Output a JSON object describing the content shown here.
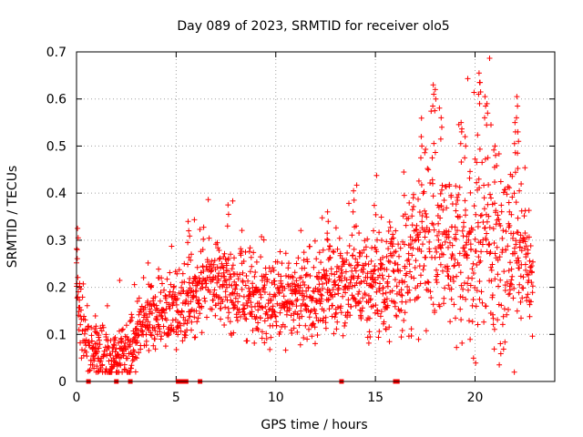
{
  "chart_data": {
    "type": "scatter",
    "title": "Day 089 of 2023, SRMTID for receiver olo5",
    "xlabel": "GPS time / hours",
    "ylabel": "SRMTID / TECUs",
    "xlim": [
      0,
      24
    ],
    "ylim": [
      0,
      0.7
    ],
    "xticks": [
      0,
      5,
      10,
      15,
      20
    ],
    "yticks": [
      0,
      0.1,
      0.2,
      0.3,
      0.4,
      0.5,
      0.6,
      0.7
    ],
    "grid": true,
    "legend": "none",
    "marker": "plus",
    "color": "#ff0000",
    "trend": [
      [
        0.0,
        0.22
      ],
      [
        0.1,
        0.16
      ],
      [
        0.3,
        0.1
      ],
      [
        0.6,
        0.07
      ],
      [
        1.0,
        0.06
      ],
      [
        1.5,
        0.06
      ],
      [
        2.0,
        0.05
      ],
      [
        2.5,
        0.06
      ],
      [
        3.0,
        0.08
      ],
      [
        3.5,
        0.14
      ],
      [
        4.0,
        0.14
      ],
      [
        4.5,
        0.15
      ],
      [
        5.0,
        0.15
      ],
      [
        5.5,
        0.17
      ],
      [
        6.0,
        0.19
      ],
      [
        6.5,
        0.21
      ],
      [
        7.0,
        0.22
      ],
      [
        7.5,
        0.21
      ],
      [
        8.0,
        0.19
      ],
      [
        8.5,
        0.18
      ],
      [
        9.0,
        0.18
      ],
      [
        9.5,
        0.18
      ],
      [
        10.0,
        0.17
      ],
      [
        10.5,
        0.18
      ],
      [
        11.0,
        0.17
      ],
      [
        11.5,
        0.18
      ],
      [
        12.0,
        0.18
      ],
      [
        12.5,
        0.2
      ],
      [
        13.0,
        0.21
      ],
      [
        13.5,
        0.21
      ],
      [
        14.0,
        0.21
      ],
      [
        14.5,
        0.2
      ],
      [
        15.0,
        0.21
      ],
      [
        15.5,
        0.22
      ],
      [
        16.0,
        0.22
      ],
      [
        16.5,
        0.24
      ],
      [
        17.0,
        0.26
      ],
      [
        17.5,
        0.3
      ],
      [
        18.0,
        0.3
      ],
      [
        18.5,
        0.29
      ],
      [
        19.0,
        0.29
      ],
      [
        19.5,
        0.28
      ],
      [
        20.0,
        0.28
      ],
      [
        20.5,
        0.3
      ],
      [
        21.0,
        0.28
      ],
      [
        21.5,
        0.26
      ],
      [
        22.0,
        0.27
      ],
      [
        22.5,
        0.28
      ],
      [
        22.8,
        0.2
      ]
    ],
    "spread": [
      [
        0,
        0.05
      ],
      [
        3,
        0.05
      ],
      [
        5,
        0.06
      ],
      [
        10,
        0.07
      ],
      [
        15,
        0.08
      ],
      [
        17,
        0.12
      ],
      [
        20,
        0.16
      ],
      [
        22,
        0.14
      ],
      [
        23,
        0.06
      ]
    ],
    "peaks": [
      [
        0.05,
        0.325
      ],
      [
        5.6,
        0.34
      ],
      [
        7.6,
        0.375
      ],
      [
        12.6,
        0.36
      ],
      [
        13.9,
        0.405
      ],
      [
        17.9,
        0.63
      ],
      [
        18.0,
        0.62
      ],
      [
        19.3,
        0.55
      ],
      [
        19.5,
        0.52
      ],
      [
        20.2,
        0.655
      ],
      [
        20.25,
        0.635
      ],
      [
        20.5,
        0.605
      ],
      [
        20.6,
        0.59
      ],
      [
        22.1,
        0.605
      ],
      [
        22.15,
        0.53
      ],
      [
        17.3,
        0.52
      ],
      [
        18.3,
        0.56
      ],
      [
        21.0,
        0.5
      ],
      [
        21.7,
        0.38
      ],
      [
        22.0,
        0.55
      ]
    ],
    "zero_points": [
      0.6,
      2.0,
      2.7,
      5.1,
      5.3,
      5.5,
      6.2,
      13.3,
      16.0,
      16.1
    ]
  }
}
